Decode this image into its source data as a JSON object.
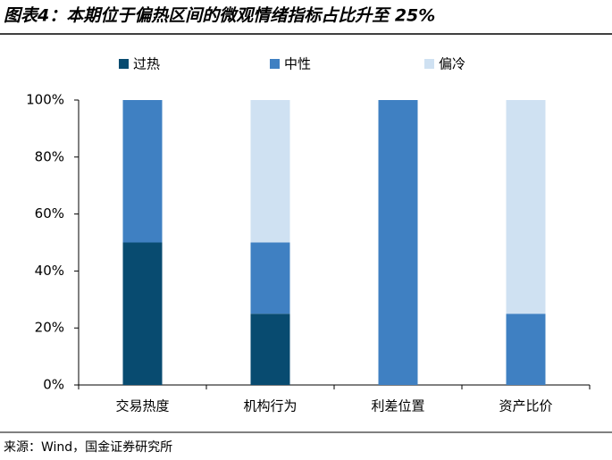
{
  "chart_data": {
    "type": "stacked_bar",
    "title": "图表4：本期位于偏热区间的微观情绪指标占比升至 25%",
    "source": "来源：Wind，国金证券研究所",
    "categories": [
      "交易热度",
      "机构行为",
      "利差位置",
      "资产比价"
    ],
    "series": [
      {
        "name": "过热",
        "color": "#084b70",
        "values": [
          50,
          25,
          0,
          0
        ]
      },
      {
        "name": "中性",
        "color": "#3f80c2",
        "values": [
          50,
          25,
          100,
          25
        ]
      },
      {
        "name": "偏冷",
        "color": "#cfe1f2",
        "values": [
          0,
          50,
          0,
          75
        ]
      }
    ],
    "ylim": [
      0,
      100
    ],
    "yticks": [
      {
        "value": 0,
        "label": "0%"
      },
      {
        "value": 20,
        "label": "20%"
      },
      {
        "value": 40,
        "label": "40%"
      },
      {
        "value": 60,
        "label": "60%"
      },
      {
        "value": 80,
        "label": "80%"
      },
      {
        "value": 100,
        "label": "100%"
      }
    ],
    "legend": "top"
  }
}
